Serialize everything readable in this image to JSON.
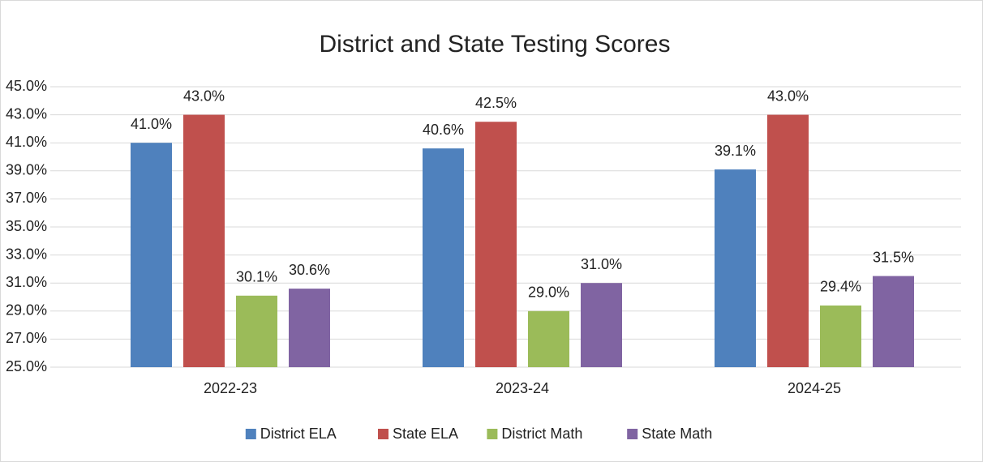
{
  "chart_data": {
    "type": "bar",
    "title": "District and State Testing Scores",
    "categories": [
      "2022-23",
      "2023-24",
      "2024-25"
    ],
    "series": [
      {
        "name": "District ELA",
        "color": "#4f81bd",
        "values": [
          41.0,
          40.6,
          39.1
        ],
        "value_labels": [
          "41.0%",
          "40.6%",
          "39.1%"
        ]
      },
      {
        "name": "State ELA",
        "color": "#c0504d",
        "values": [
          43.0,
          42.5,
          43.0
        ],
        "value_labels": [
          "43.0%",
          "42.5%",
          "43.0%"
        ]
      },
      {
        "name": "District Math",
        "color": "#9bbb59",
        "values": [
          30.1,
          29.0,
          29.4
        ],
        "value_labels": [
          "30.1%",
          "29.0%",
          "29.4%"
        ]
      },
      {
        "name": "State Math",
        "color": "#8064a2",
        "values": [
          30.6,
          31.0,
          31.5
        ],
        "value_labels": [
          "30.6%",
          "31.0%",
          "31.5%"
        ]
      }
    ],
    "ylim": [
      25,
      45
    ],
    "yticks": [
      {
        "value": 25,
        "label": "25.0%"
      },
      {
        "value": 27,
        "label": "27.0%"
      },
      {
        "value": 29,
        "label": "29.0%"
      },
      {
        "value": 31,
        "label": "31.0%"
      },
      {
        "value": 33,
        "label": "33.0%"
      },
      {
        "value": 35,
        "label": "35.0%"
      },
      {
        "value": 37,
        "label": "37.0%"
      },
      {
        "value": 39,
        "label": "39.0%"
      },
      {
        "value": 41,
        "label": "41.0%"
      },
      {
        "value": 43,
        "label": "43.0%"
      },
      {
        "value": 45,
        "label": "45.0%"
      }
    ],
    "grid": true,
    "legend": "bottom"
  }
}
